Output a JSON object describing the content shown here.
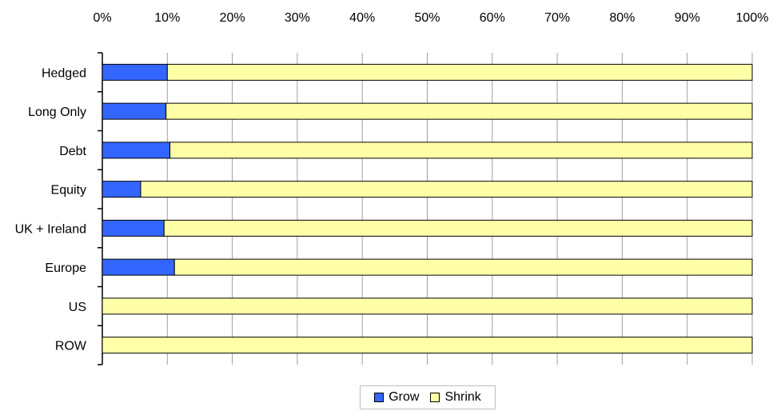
{
  "chart_data": {
    "type": "bar",
    "orientation": "horizontal",
    "stacked": "percent",
    "categories": [
      "Hedged",
      "Long Only",
      "Debt",
      "Equity",
      "UK + Ireland",
      "Europe",
      "US",
      "ROW"
    ],
    "series": [
      {
        "name": "Grow",
        "color": "#3366ff",
        "values": [
          10,
          9.8,
          10.4,
          5.9,
          9.5,
          11.1,
          0,
          0
        ]
      },
      {
        "name": "Shrink",
        "color": "#ffffa8",
        "values": [
          90,
          90.2,
          89.6,
          94.1,
          90.5,
          88.9,
          100,
          100
        ]
      }
    ],
    "xticks": [
      "0%",
      "10%",
      "20%",
      "30%",
      "40%",
      "50%",
      "60%",
      "70%",
      "80%",
      "90%",
      "100%"
    ],
    "xlim": [
      0,
      100
    ],
    "grid": true,
    "legend_position": "bottom"
  },
  "legend": {
    "items": [
      {
        "label": "Grow",
        "color": "#3366ff"
      },
      {
        "label": "Shrink",
        "color": "#ffffa8"
      }
    ]
  }
}
